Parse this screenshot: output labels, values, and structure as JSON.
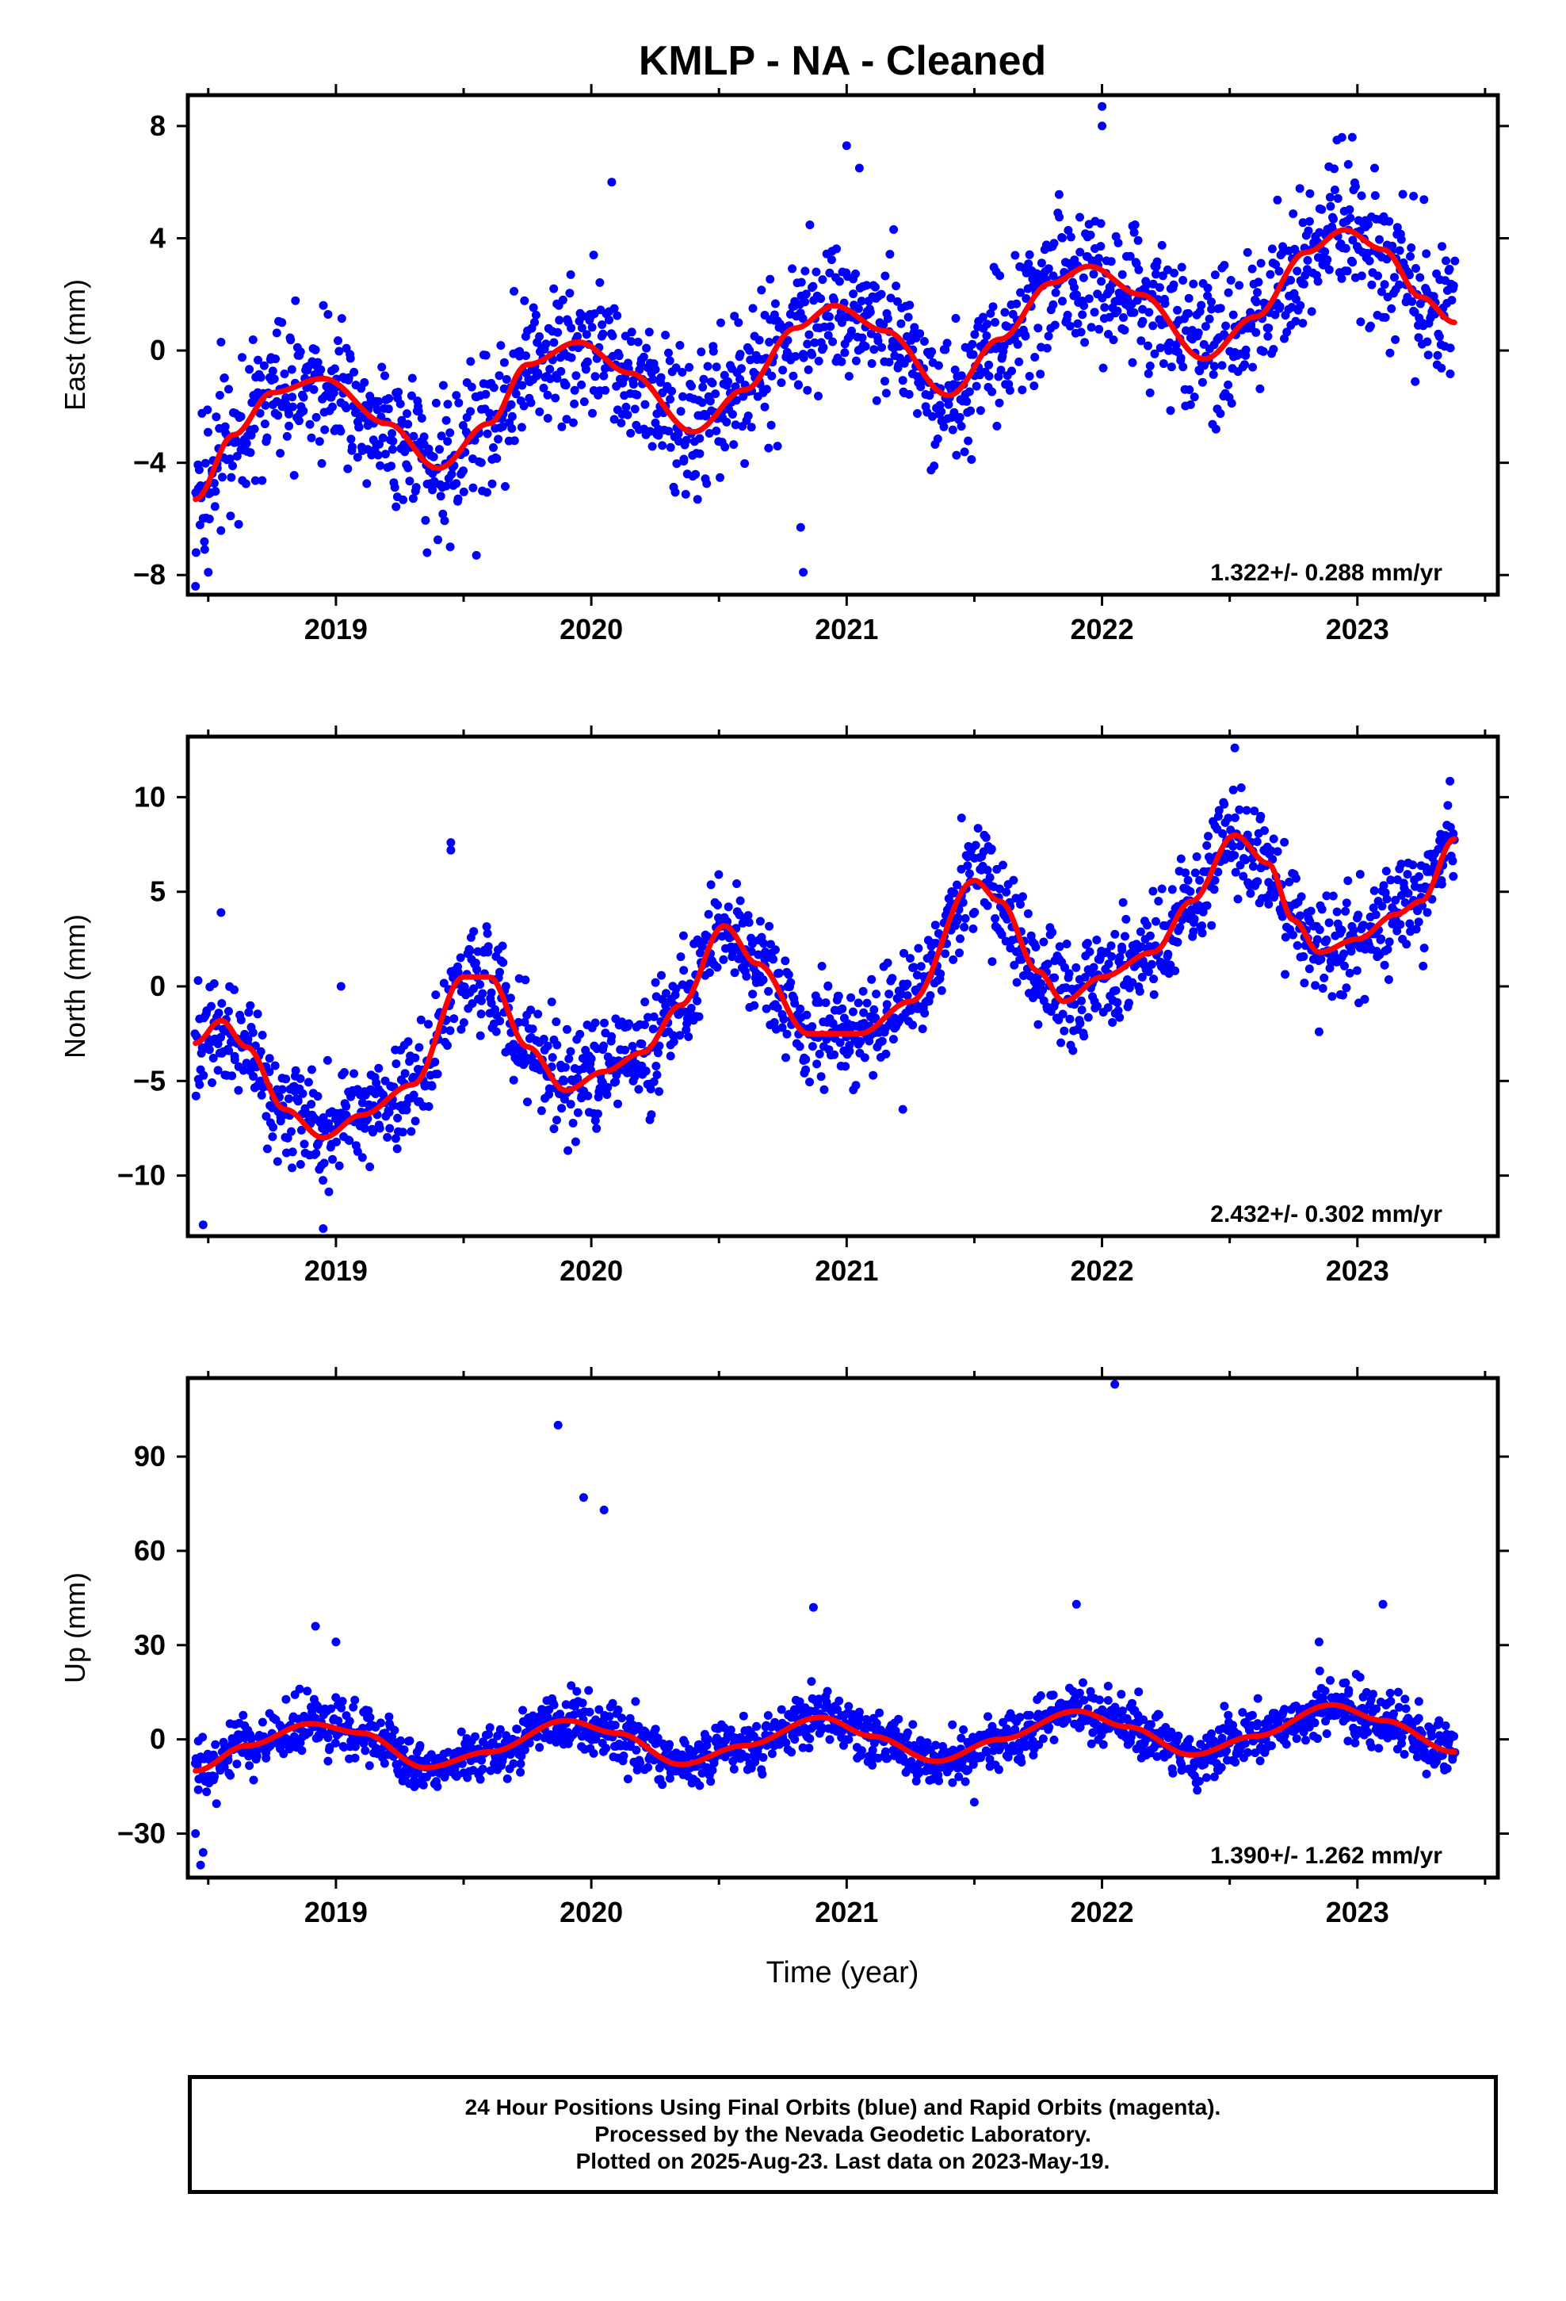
{
  "title": "KMLP  - NA - Cleaned",
  "xlabel": "Time (year)",
  "colors": {
    "points": "#0000ff",
    "fit": "#ff0000",
    "axis": "#000000"
  },
  "footer": {
    "line1": "24 Hour Positions Using Final Orbits (blue) and Rapid Orbits (magenta).",
    "line2": "Processed by the Nevada Geodetic Laboratory.",
    "line3": "Plotted on 2025-Aug-23. Last data on 2023-May-19."
  },
  "chart_data": [
    {
      "type": "scatter",
      "name": "east",
      "ylabel": "East (mm)",
      "rate_label": "1.322+/- 0.288 mm/yr",
      "xlim": [
        2018.42,
        2023.55
      ],
      "ylim": [
        -8.7,
        9.1
      ],
      "xticks": [
        "2019",
        "2020",
        "2021",
        "2022",
        "2023"
      ],
      "yticks": [
        "8",
        "4",
        "0",
        "−4",
        "−8"
      ],
      "yticks_values": [
        8,
        4,
        0,
        -4,
        -8
      ],
      "grid": false,
      "fit": {
        "x": [
          2018.45,
          2018.6,
          2018.75,
          2018.95,
          2019.2,
          2019.4,
          2019.6,
          2019.75,
          2019.95,
          2020.15,
          2020.4,
          2020.6,
          2020.8,
          2020.95,
          2021.15,
          2021.4,
          2021.6,
          2021.8,
          2021.95,
          2022.15,
          2022.4,
          2022.6,
          2022.8,
          2022.95,
          2023.1,
          2023.25,
          2023.38
        ],
        "y": [
          -5.3,
          -3.0,
          -1.5,
          -1.0,
          -2.6,
          -4.2,
          -2.6,
          -0.5,
          0.3,
          -0.8,
          -2.9,
          -1.4,
          0.8,
          1.6,
          0.7,
          -1.6,
          0.4,
          2.4,
          3.0,
          2.0,
          -0.3,
          1.2,
          3.5,
          4.3,
          3.6,
          1.9,
          1.0
        ]
      },
      "scatter": {
        "amplitude": 1.6,
        "n": 1650,
        "outliers": [
          [
            2018.45,
            -8.4
          ],
          [
            2020.08,
            6.0
          ],
          [
            2020.82,
            -6.3
          ],
          [
            2020.83,
            -7.9
          ],
          [
            2021.0,
            7.3
          ],
          [
            2021.05,
            6.5
          ],
          [
            2022.0,
            8.7
          ],
          [
            2022.0,
            8.0
          ],
          [
            2022.92,
            7.5
          ],
          [
            2022.98,
            7.6
          ],
          [
            2019.55,
            -7.3
          ],
          [
            2018.5,
            -7.9
          ]
        ]
      }
    },
    {
      "type": "scatter",
      "name": "north",
      "ylabel": "North (mm)",
      "rate_label": "2.432+/- 0.302 mm/yr",
      "xlim": [
        2018.42,
        2023.55
      ],
      "ylim": [
        -13.2,
        13.2
      ],
      "xticks": [
        "2019",
        "2020",
        "2021",
        "2022",
        "2023"
      ],
      "yticks": [
        "10",
        "5",
        "0",
        "−5",
        "−10"
      ],
      "yticks_values": [
        10,
        5,
        0,
        -5,
        -10
      ],
      "grid": false,
      "fit": {
        "x": [
          2018.45,
          2018.55,
          2018.65,
          2018.8,
          2018.95,
          2019.1,
          2019.3,
          2019.5,
          2019.6,
          2019.75,
          2019.9,
          2020.05,
          2020.2,
          2020.35,
          2020.52,
          2020.65,
          2020.85,
          2021.05,
          2021.25,
          2021.5,
          2021.6,
          2021.75,
          2021.85,
          2022.0,
          2022.2,
          2022.35,
          2022.52,
          2022.65,
          2022.75,
          2022.85,
          2023.0,
          2023.15,
          2023.25,
          2023.38
        ],
        "y": [
          -3.0,
          -1.8,
          -3.2,
          -6.5,
          -8.0,
          -6.8,
          -5.2,
          0.5,
          0.5,
          -3.2,
          -5.5,
          -4.5,
          -3.5,
          -1.0,
          3.2,
          1.2,
          -2.5,
          -2.5,
          -0.8,
          5.6,
          4.5,
          0.8,
          -0.8,
          0.5,
          1.8,
          4.5,
          8.0,
          6.5,
          3.5,
          1.8,
          2.5,
          3.8,
          4.5,
          7.8
        ]
      },
      "scatter": {
        "amplitude": 1.7,
        "n": 1650,
        "outliers": [
          [
            2018.48,
            -12.6
          ],
          [
            2018.95,
            -12.8
          ],
          [
            2019.45,
            7.6
          ],
          [
            2019.45,
            7.2
          ],
          [
            2018.55,
            3.9
          ],
          [
            2021.45,
            8.9
          ],
          [
            2022.52,
            12.6
          ],
          [
            2022.85,
            -2.4
          ],
          [
            2021.22,
            -6.5
          ],
          [
            2019.02,
            0.0
          ]
        ]
      }
    },
    {
      "type": "scatter",
      "name": "up",
      "ylabel": "Up (mm)",
      "rate_label": "1.390+/- 1.262 mm/yr",
      "xlim": [
        2018.42,
        2023.55
      ],
      "ylim": [
        -44,
        115
      ],
      "xticks": [
        "2019",
        "2020",
        "2021",
        "2022",
        "2023"
      ],
      "yticks": [
        "90",
        "60",
        "30",
        "0",
        "−30"
      ],
      "yticks_values": [
        90,
        60,
        30,
        0,
        -30
      ],
      "grid": false,
      "fit": {
        "x": [
          2018.45,
          2018.65,
          2018.9,
          2019.1,
          2019.35,
          2019.6,
          2019.9,
          2020.1,
          2020.35,
          2020.6,
          2020.9,
          2021.1,
          2021.35,
          2021.6,
          2021.9,
          2022.1,
          2022.35,
          2022.6,
          2022.9,
          2023.1,
          2023.38
        ],
        "y": [
          -10.0,
          -2.0,
          5.0,
          2.0,
          -9.0,
          -4.0,
          6.0,
          2.0,
          -8.0,
          -2.0,
          7.0,
          1.0,
          -7.0,
          0.0,
          9.0,
          4.0,
          -5.0,
          1.0,
          11.0,
          6.0,
          -4.0
        ]
      },
      "scatter": {
        "amplitude": 5.5,
        "n": 1650,
        "outliers": [
          [
            2019.87,
            100.0
          ],
          [
            2019.97,
            77.0
          ],
          [
            2020.05,
            73.0
          ],
          [
            2022.05,
            113.0
          ],
          [
            2018.47,
            -40.0
          ],
          [
            2018.48,
            -36.0
          ],
          [
            2018.45,
            -30.0
          ],
          [
            2020.87,
            42.0
          ],
          [
            2021.9,
            43.0
          ],
          [
            2023.1,
            43.0
          ],
          [
            2018.92,
            36.0
          ],
          [
            2022.85,
            31.0
          ],
          [
            2019.0,
            31.0
          ],
          [
            2021.5,
            -20.0
          ]
        ]
      }
    }
  ]
}
